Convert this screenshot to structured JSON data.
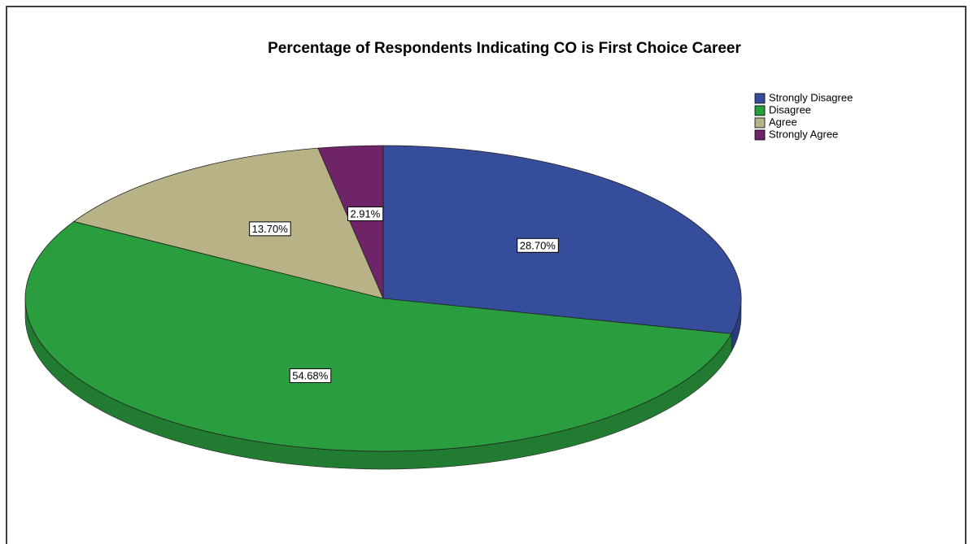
{
  "chart_data": {
    "type": "pie",
    "title": "Percentage of Respondents Indicating CO is First Choice Career",
    "categories": [
      "Strongly Disagree",
      "Disagree",
      "Agree",
      "Strongly Agree"
    ],
    "values": [
      28.7,
      54.68,
      13.7,
      2.91
    ],
    "value_labels": [
      "28.70%",
      "54.68%",
      "13.70%",
      "2.91%"
    ],
    "colors": [
      "#354d9b",
      "#2a9e3e",
      "#b8b386",
      "#6e2466"
    ],
    "legend": "top-right"
  }
}
